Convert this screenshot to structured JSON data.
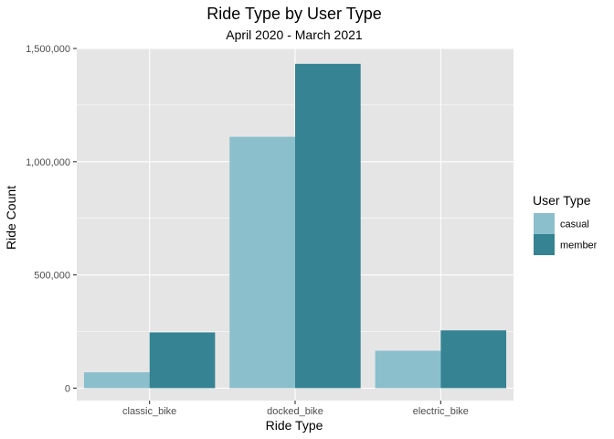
{
  "chart_data": {
    "type": "bar",
    "title": "Ride Type by User Type",
    "subtitle": "April 2020 - March 2021",
    "xlabel": "Ride Type",
    "ylabel": "Ride Count",
    "categories": [
      "classic_bike",
      "docked_bike",
      "electric_bike"
    ],
    "series": [
      {
        "name": "casual",
        "values": [
          70000,
          1110000,
          165000
        ],
        "color": "#8bbfcc"
      },
      {
        "name": "member",
        "values": [
          246000,
          1432000,
          255000
        ],
        "color": "#358393"
      }
    ],
    "ylim": [
      -55000,
      1500000
    ],
    "yticks": [
      0,
      500000,
      1000000,
      1500000
    ],
    "ytick_labels": [
      "0",
      "500,000",
      "1,000,000",
      "1,500,000"
    ],
    "legend_title": "User Type",
    "legend_position": "right",
    "grid": true,
    "panel_background": "#e5e5e5",
    "grid_color": "#ffffff"
  }
}
